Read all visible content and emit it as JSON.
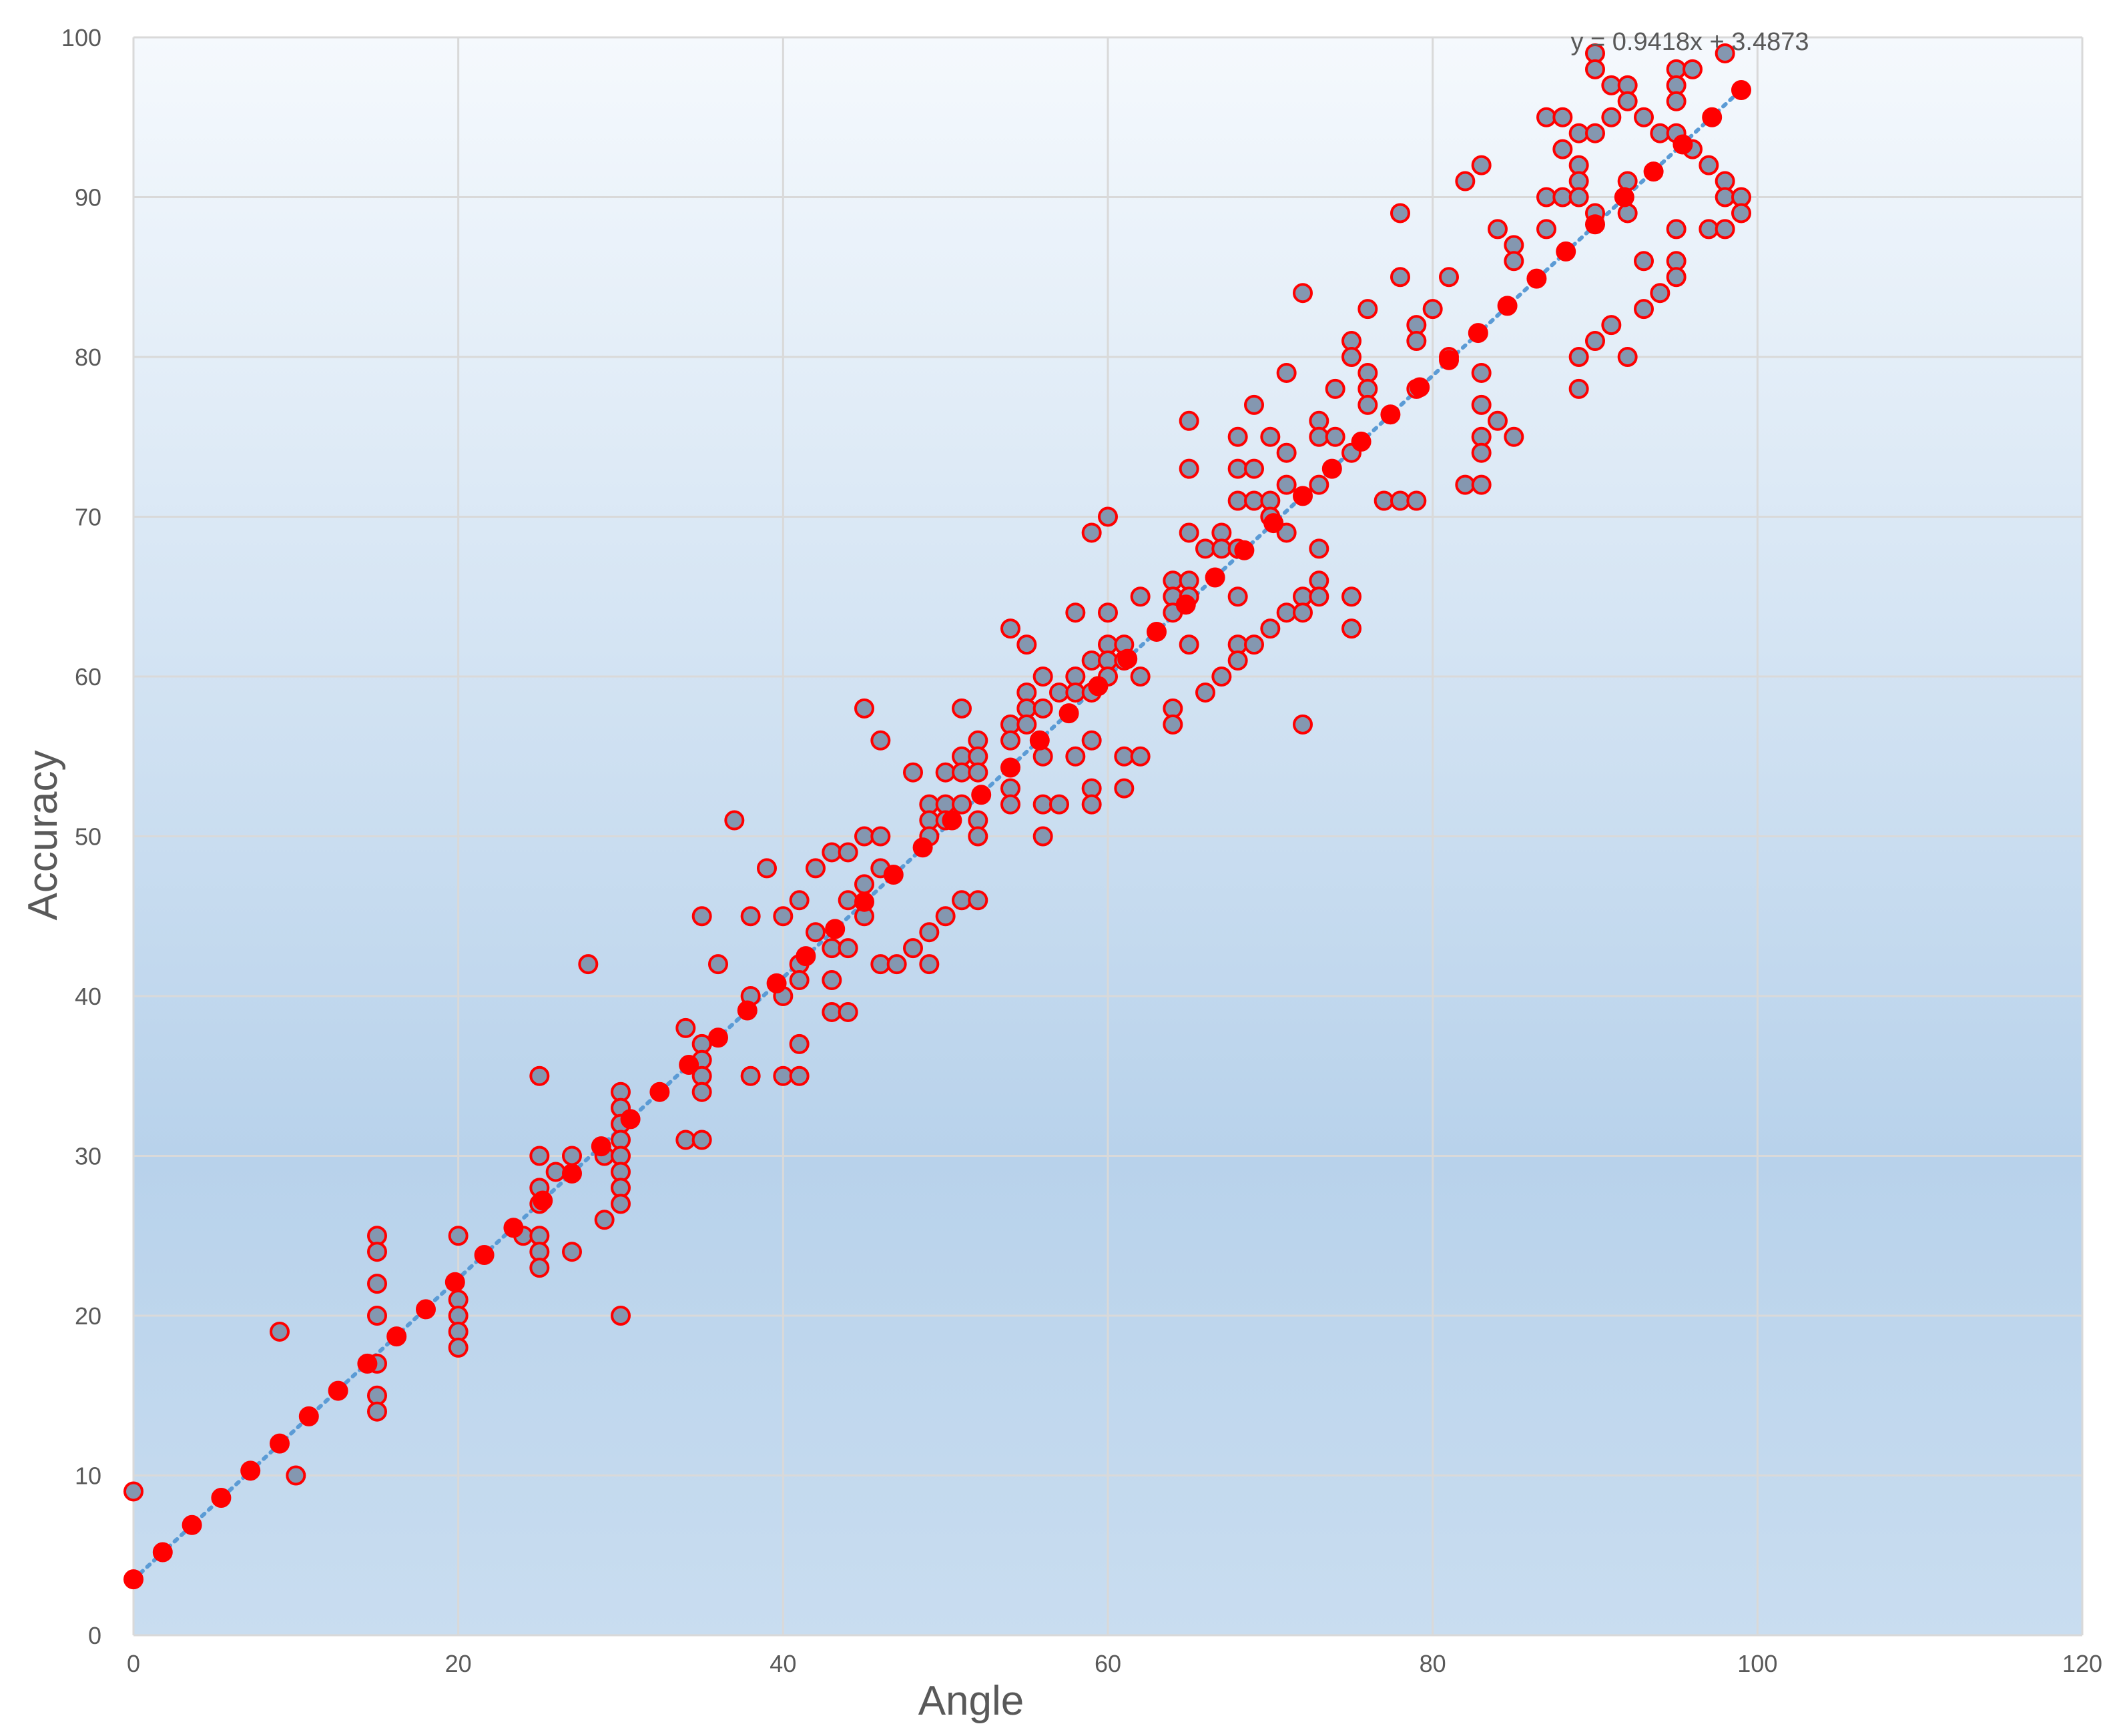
{
  "chart_data": {
    "type": "scatter",
    "title": "",
    "xlabel": "Angle",
    "ylabel": "Accuracy",
    "xlim": [
      0,
      120
    ],
    "ylim": [
      0,
      100
    ],
    "x_ticks": [
      "0",
      "20",
      "40",
      "60",
      "80",
      "100",
      "120"
    ],
    "y_ticks": [
      "0",
      "10",
      "20",
      "30",
      "40",
      "50",
      "60",
      "70",
      "80",
      "90",
      "100"
    ],
    "grid": true,
    "legend": "none",
    "trendline": {
      "type": "linear",
      "equation": "y = 0.9418x + 3.4873",
      "slope": 0.9418,
      "intercept": 3.4873,
      "style": "dotted",
      "color": "#5B9BD5"
    },
    "colors": {
      "observed_fill": "#8497B0",
      "observed_edge": "#FF0000",
      "fitted_fill": "#FF0000",
      "grid": "#D9D9D9",
      "background_top": "#F5F9FD",
      "background_bottom": "#B8D2EB"
    },
    "series": [
      {
        "name": "",
        "marker": "circle-outlined",
        "points": [
          [
            0,
            9
          ],
          [
            9,
            19
          ],
          [
            10,
            10
          ],
          [
            15,
            25
          ],
          [
            15,
            24
          ],
          [
            15,
            22
          ],
          [
            15,
            20
          ],
          [
            15,
            17
          ],
          [
            15,
            15
          ],
          [
            15,
            14
          ],
          [
            20,
            25
          ],
          [
            20,
            21
          ],
          [
            20,
            20
          ],
          [
            20,
            19
          ],
          [
            20,
            18
          ],
          [
            24,
            25
          ],
          [
            25,
            35
          ],
          [
            25,
            30
          ],
          [
            25,
            28
          ],
          [
            25,
            27
          ],
          [
            25,
            25
          ],
          [
            25,
            24
          ],
          [
            25,
            23
          ],
          [
            26,
            29
          ],
          [
            27,
            30
          ],
          [
            27,
            24
          ],
          [
            28,
            42
          ],
          [
            29,
            30
          ],
          [
            29,
            26
          ],
          [
            30,
            34
          ],
          [
            30,
            33
          ],
          [
            30,
            32
          ],
          [
            30,
            31
          ],
          [
            30,
            30
          ],
          [
            30,
            29
          ],
          [
            30,
            28
          ],
          [
            30,
            27
          ],
          [
            30,
            20
          ],
          [
            34,
            38
          ],
          [
            34,
            31
          ],
          [
            35,
            45
          ],
          [
            35,
            37
          ],
          [
            35,
            36
          ],
          [
            35,
            35
          ],
          [
            35,
            34
          ],
          [
            35,
            31
          ],
          [
            36,
            42
          ],
          [
            37,
            51
          ],
          [
            38,
            45
          ],
          [
            38,
            40
          ],
          [
            38,
            35
          ],
          [
            39,
            48
          ],
          [
            40,
            45
          ],
          [
            40,
            40
          ],
          [
            40,
            35
          ],
          [
            41,
            46
          ],
          [
            41,
            42
          ],
          [
            41,
            41
          ],
          [
            41,
            37
          ],
          [
            41,
            35
          ],
          [
            42,
            48
          ],
          [
            42,
            44
          ],
          [
            43,
            49
          ],
          [
            43,
            43
          ],
          [
            43,
            41
          ],
          [
            43,
            39
          ],
          [
            44,
            49
          ],
          [
            44,
            46
          ],
          [
            44,
            43
          ],
          [
            44,
            39
          ],
          [
            45,
            58
          ],
          [
            45,
            50
          ],
          [
            45,
            47
          ],
          [
            45,
            45
          ],
          [
            46,
            56
          ],
          [
            46,
            50
          ],
          [
            46,
            48
          ],
          [
            46,
            42
          ],
          [
            47,
            42
          ],
          [
            48,
            54
          ],
          [
            48,
            43
          ],
          [
            49,
            52
          ],
          [
            49,
            51
          ],
          [
            49,
            50
          ],
          [
            49,
            44
          ],
          [
            49,
            42
          ],
          [
            50,
            54
          ],
          [
            50,
            52
          ],
          [
            50,
            51
          ],
          [
            50,
            45
          ],
          [
            51,
            58
          ],
          [
            51,
            55
          ],
          [
            51,
            54
          ],
          [
            51,
            52
          ],
          [
            51,
            46
          ],
          [
            52,
            56
          ],
          [
            52,
            55
          ],
          [
            52,
            54
          ],
          [
            52,
            51
          ],
          [
            52,
            50
          ],
          [
            52,
            46
          ],
          [
            54,
            63
          ],
          [
            54,
            57
          ],
          [
            54,
            56
          ],
          [
            54,
            53
          ],
          [
            54,
            52
          ],
          [
            55,
            62
          ],
          [
            55,
            59
          ],
          [
            55,
            58
          ],
          [
            55,
            57
          ],
          [
            56,
            60
          ],
          [
            56,
            58
          ],
          [
            56,
            55
          ],
          [
            56,
            52
          ],
          [
            56,
            50
          ],
          [
            57,
            59
          ],
          [
            57,
            52
          ],
          [
            58,
            64
          ],
          [
            58,
            60
          ],
          [
            58,
            59
          ],
          [
            58,
            55
          ],
          [
            59,
            69
          ],
          [
            59,
            61
          ],
          [
            59,
            59
          ],
          [
            59,
            56
          ],
          [
            59,
            53
          ],
          [
            59,
            52
          ],
          [
            60,
            70
          ],
          [
            60,
            64
          ],
          [
            60,
            62
          ],
          [
            60,
            61
          ],
          [
            60,
            60
          ],
          [
            61,
            62
          ],
          [
            61,
            61
          ],
          [
            61,
            55
          ],
          [
            61,
            53
          ],
          [
            62,
            65
          ],
          [
            62,
            60
          ],
          [
            62,
            55
          ],
          [
            64,
            66
          ],
          [
            64,
            65
          ],
          [
            64,
            64
          ],
          [
            64,
            58
          ],
          [
            64,
            57
          ],
          [
            65,
            76
          ],
          [
            65,
            73
          ],
          [
            65,
            69
          ],
          [
            65,
            66
          ],
          [
            65,
            65
          ],
          [
            65,
            62
          ],
          [
            66,
            68
          ],
          [
            66,
            59
          ],
          [
            67,
            69
          ],
          [
            67,
            68
          ],
          [
            67,
            60
          ],
          [
            68,
            75
          ],
          [
            68,
            73
          ],
          [
            68,
            71
          ],
          [
            68,
            68
          ],
          [
            68,
            65
          ],
          [
            68,
            62
          ],
          [
            68,
            61
          ],
          [
            69,
            77
          ],
          [
            69,
            73
          ],
          [
            69,
            71
          ],
          [
            69,
            62
          ],
          [
            70,
            75
          ],
          [
            70,
            71
          ],
          [
            70,
            70
          ],
          [
            70,
            63
          ],
          [
            71,
            79
          ],
          [
            71,
            74
          ],
          [
            71,
            72
          ],
          [
            71,
            69
          ],
          [
            71,
            64
          ],
          [
            72,
            84
          ],
          [
            72,
            65
          ],
          [
            72,
            64
          ],
          [
            72,
            57
          ],
          [
            73,
            76
          ],
          [
            73,
            75
          ],
          [
            73,
            72
          ],
          [
            73,
            68
          ],
          [
            73,
            66
          ],
          [
            73,
            65
          ],
          [
            74,
            78
          ],
          [
            74,
            75
          ],
          [
            75,
            81
          ],
          [
            75,
            80
          ],
          [
            75,
            74
          ],
          [
            75,
            65
          ],
          [
            75,
            63
          ],
          [
            76,
            83
          ],
          [
            76,
            79
          ],
          [
            76,
            78
          ],
          [
            76,
            77
          ],
          [
            77,
            71
          ],
          [
            78,
            89
          ],
          [
            78,
            85
          ],
          [
            78,
            71
          ],
          [
            79,
            82
          ],
          [
            79,
            81
          ],
          [
            79,
            78
          ],
          [
            79,
            71
          ],
          [
            80,
            83
          ],
          [
            81,
            85
          ],
          [
            81,
            80
          ],
          [
            82,
            91
          ],
          [
            82,
            72
          ],
          [
            83,
            92
          ],
          [
            83,
            79
          ],
          [
            83,
            77
          ],
          [
            83,
            75
          ],
          [
            83,
            74
          ],
          [
            83,
            72
          ],
          [
            84,
            88
          ],
          [
            84,
            76
          ],
          [
            85,
            87
          ],
          [
            85,
            86
          ],
          [
            85,
            75
          ],
          [
            87,
            95
          ],
          [
            87,
            90
          ],
          [
            87,
            88
          ],
          [
            88,
            95
          ],
          [
            88,
            93
          ],
          [
            88,
            90
          ],
          [
            89,
            94
          ],
          [
            89,
            92
          ],
          [
            89,
            91
          ],
          [
            89,
            90
          ],
          [
            89,
            80
          ],
          [
            89,
            78
          ],
          [
            90,
            99
          ],
          [
            90,
            98
          ],
          [
            90,
            94
          ],
          [
            90,
            89
          ],
          [
            90,
            81
          ],
          [
            91,
            97
          ],
          [
            91,
            95
          ],
          [
            91,
            82
          ],
          [
            92,
            97
          ],
          [
            92,
            96
          ],
          [
            92,
            91
          ],
          [
            92,
            89
          ],
          [
            92,
            80
          ],
          [
            93,
            95
          ],
          [
            93,
            86
          ],
          [
            93,
            83
          ],
          [
            94,
            94
          ],
          [
            94,
            84
          ],
          [
            95,
            98
          ],
          [
            95,
            97
          ],
          [
            95,
            96
          ],
          [
            95,
            94
          ],
          [
            95,
            88
          ],
          [
            95,
            86
          ],
          [
            95,
            85
          ],
          [
            96,
            98
          ],
          [
            96,
            93
          ],
          [
            97,
            92
          ],
          [
            97,
            88
          ],
          [
            98,
            99
          ],
          [
            98,
            91
          ],
          [
            98,
            90
          ],
          [
            98,
            88
          ],
          [
            99,
            90
          ],
          [
            99,
            89
          ]
        ]
      },
      {
        "name": "",
        "marker": "circle-filled",
        "points": [
          [
            0,
            3.5
          ],
          [
            1.8,
            5.2
          ],
          [
            3.6,
            6.9
          ],
          [
            5.4,
            8.6
          ],
          [
            7.2,
            10.3
          ],
          [
            9,
            12
          ],
          [
            10.8,
            13.7
          ],
          [
            12.6,
            15.3
          ],
          [
            14.4,
            17
          ],
          [
            16.2,
            18.7
          ],
          [
            18,
            20.4
          ],
          [
            19.8,
            22.1
          ],
          [
            21.6,
            23.8
          ],
          [
            23.4,
            25.5
          ],
          [
            25.2,
            27.2
          ],
          [
            27,
            28.9
          ],
          [
            28.8,
            30.6
          ],
          [
            30.6,
            32.3
          ],
          [
            32.4,
            34
          ],
          [
            34.2,
            35.7
          ],
          [
            36,
            37.4
          ],
          [
            37.8,
            39.1
          ],
          [
            39.6,
            40.8
          ],
          [
            41.4,
            42.5
          ],
          [
            43.2,
            44.2
          ],
          [
            45,
            45.9
          ],
          [
            46.8,
            47.6
          ],
          [
            48.6,
            49.3
          ],
          [
            50.4,
            51
          ],
          [
            52.2,
            52.6
          ],
          [
            54,
            54.3
          ],
          [
            55.8,
            56
          ],
          [
            57.6,
            57.7
          ],
          [
            59.4,
            59.4
          ],
          [
            61.2,
            61.1
          ],
          [
            63,
            62.8
          ],
          [
            64.8,
            64.5
          ],
          [
            66.6,
            66.2
          ],
          [
            68.4,
            67.9
          ],
          [
            70.2,
            69.6
          ],
          [
            72,
            71.3
          ],
          [
            73.8,
            73
          ],
          [
            75.6,
            74.7
          ],
          [
            77.4,
            76.4
          ],
          [
            79.2,
            78.1
          ],
          [
            81,
            79.8
          ],
          [
            82.8,
            81.5
          ],
          [
            84.6,
            83.2
          ],
          [
            86.4,
            84.9
          ],
          [
            88.2,
            86.6
          ],
          [
            90,
            88.3
          ],
          [
            91.8,
            90
          ],
          [
            93.6,
            91.6
          ],
          [
            95.4,
            93.3
          ],
          [
            97.2,
            95
          ],
          [
            99,
            96.7
          ]
        ]
      }
    ]
  }
}
